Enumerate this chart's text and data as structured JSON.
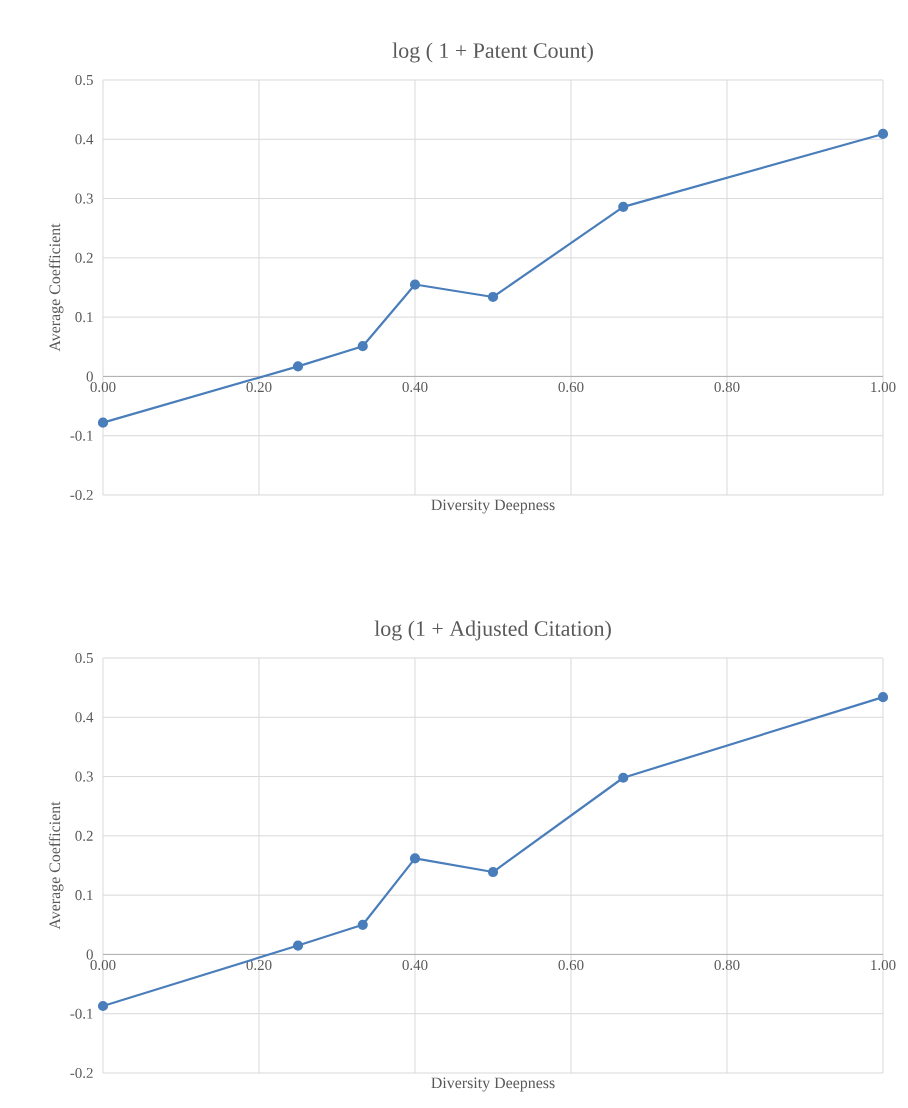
{
  "chart_data": [
    {
      "type": "line",
      "title": "log ( 1 + Patent Count)",
      "xlabel": "Diversity Deepness",
      "ylabel": "Average Coefficient",
      "x": [
        0,
        0.25,
        0.333,
        0.4,
        0.5,
        0.667,
        1.0
      ],
      "values": [
        -0.078,
        0.017,
        0.051,
        0.155,
        0.134,
        0.286,
        0.409
      ],
      "color": "#4a7ebb",
      "marker": "circle",
      "grid": true,
      "xlim": [
        0,
        1
      ],
      "ylim": [
        -0.2,
        0.5
      ],
      "xticks": [
        {
          "value": 0,
          "label": "0.00"
        },
        {
          "value": 0.2,
          "label": "0.20"
        },
        {
          "value": 0.4,
          "label": "0.40"
        },
        {
          "value": 0.6,
          "label": "0.60"
        },
        {
          "value": 0.8,
          "label": "0.80"
        },
        {
          "value": 1,
          "label": "1.00"
        }
      ],
      "yticks": [
        -0.2,
        -0.1,
        0,
        0.1,
        0.2,
        0.3,
        0.4,
        0.5
      ]
    },
    {
      "type": "line",
      "title": "log (1 + Adjusted Citation)",
      "xlabel": "Diversity Deepness",
      "ylabel": "Average Coefficient",
      "x": [
        0,
        0.25,
        0.333,
        0.4,
        0.5,
        0.667,
        1.0
      ],
      "values": [
        -0.087,
        0.015,
        0.05,
        0.162,
        0.139,
        0.298,
        0.434
      ],
      "color": "#4a7ebb",
      "marker": "circle",
      "grid": true,
      "xlim": [
        0,
        1
      ],
      "ylim": [
        -0.2,
        0.5
      ],
      "xticks": [
        {
          "value": 0,
          "label": "0.00"
        },
        {
          "value": 0.2,
          "label": "0.20"
        },
        {
          "value": 0.4,
          "label": "0.40"
        },
        {
          "value": 0.6,
          "label": "0.60"
        },
        {
          "value": 0.8,
          "label": "0.80"
        },
        {
          "value": 1,
          "label": "1.00"
        }
      ],
      "yticks": [
        -0.2,
        -0.1,
        0,
        0.1,
        0.2,
        0.3,
        0.4,
        0.5
      ]
    }
  ]
}
